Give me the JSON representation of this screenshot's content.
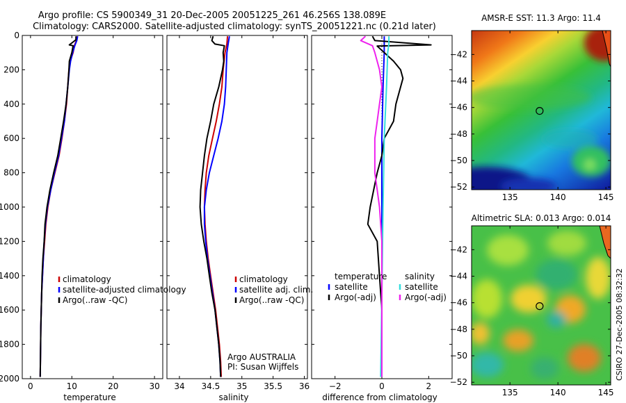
{
  "header": {
    "title_line1": "Argo profile: CS 5900349_31 20-Dec-2005 20051225_261 46.256S 138.089E",
    "title_line2": "Climatology: CARS2000. Satellite-adjusted climatology: synTS_20051221.nc (0.21d later)"
  },
  "footer": {
    "credit": "CSIRO 27-Dec-2005 08:32:32"
  },
  "colors": {
    "red": "#cc0000",
    "blue": "#0000ff",
    "black": "#000000",
    "cyan": "#33dddd",
    "magenta": "#ee22ee"
  },
  "chart_data": [
    {
      "id": "temperature",
      "type": "line",
      "xlabel": "temperature",
      "xlim": [
        -2,
        32
      ],
      "ylim": [
        2000,
        0
      ],
      "xticks": [
        0,
        10,
        20,
        30
      ],
      "yticks": [
        0,
        200,
        400,
        600,
        800,
        1000,
        1200,
        1400,
        1600,
        1800,
        2000
      ],
      "legend": [
        "climatology",
        "satellite-adjusted climatology",
        "Argo(..raw -QC)"
      ],
      "series": [
        {
          "name": "climatology",
          "color": "red",
          "points": [
            [
              11.3,
              5
            ],
            [
              11.1,
              30
            ],
            [
              10.6,
              60
            ],
            [
              10.3,
              100
            ],
            [
              9.6,
              150
            ],
            [
              9.3,
              200
            ],
            [
              9.0,
              300
            ],
            [
              8.7,
              400
            ],
            [
              8.2,
              500
            ],
            [
              7.6,
              600
            ],
            [
              6.9,
              700
            ],
            [
              5.9,
              800
            ],
            [
              4.9,
              900
            ],
            [
              4.2,
              1000
            ],
            [
              3.7,
              1100
            ],
            [
              3.4,
              1200
            ],
            [
              3.1,
              1300
            ],
            [
              2.9,
              1400
            ],
            [
              2.7,
              1500
            ],
            [
              2.6,
              1600
            ],
            [
              2.5,
              1700
            ],
            [
              2.45,
              1800
            ],
            [
              2.4,
              1900
            ],
            [
              2.35,
              1990
            ]
          ]
        },
        {
          "name": "satellite",
          "color": "blue",
          "points": [
            [
              11.4,
              5
            ],
            [
              11.2,
              30
            ],
            [
              10.7,
              60
            ],
            [
              10.2,
              100
            ],
            [
              9.7,
              150
            ],
            [
              9.4,
              200
            ],
            [
              9.0,
              300
            ],
            [
              8.6,
              400
            ],
            [
              8.2,
              500
            ],
            [
              7.5,
              600
            ],
            [
              6.8,
              700
            ],
            [
              5.8,
              800
            ],
            [
              4.9,
              900
            ],
            [
              4.1,
              1000
            ],
            [
              3.6,
              1100
            ],
            [
              3.3,
              1200
            ],
            [
              3.1,
              1300
            ],
            [
              2.9,
              1400
            ],
            [
              2.7,
              1500
            ],
            [
              2.6,
              1600
            ],
            [
              2.5,
              1700
            ],
            [
              2.45,
              1800
            ],
            [
              2.4,
              1900
            ],
            [
              2.35,
              1990
            ]
          ]
        },
        {
          "name": "argo",
          "color": "black",
          "points": [
            [
              11.0,
              5
            ],
            [
              11.0,
              25
            ],
            [
              10.2,
              40
            ],
            [
              9.4,
              55
            ],
            [
              10.3,
              60
            ],
            [
              10.0,
              100
            ],
            [
              9.4,
              150
            ],
            [
              9.3,
              200
            ],
            [
              9.0,
              300
            ],
            [
              8.6,
              400
            ],
            [
              8.0,
              500
            ],
            [
              7.3,
              600
            ],
            [
              6.6,
              700
            ],
            [
              5.6,
              800
            ],
            [
              4.7,
              900
            ],
            [
              4.0,
              1000
            ],
            [
              3.5,
              1100
            ],
            [
              3.3,
              1200
            ],
            [
              3.0,
              1300
            ],
            [
              2.8,
              1400
            ],
            [
              2.7,
              1500
            ],
            [
              2.6,
              1600
            ],
            [
              2.5,
              1700
            ],
            [
              2.45,
              1800
            ],
            [
              2.4,
              1900
            ],
            [
              2.35,
              1990
            ]
          ]
        }
      ]
    },
    {
      "id": "salinity",
      "type": "line",
      "xlabel": "salinity",
      "xlim": [
        33.8,
        36.05
      ],
      "ylim": [
        2000,
        0
      ],
      "xticks": [
        34,
        34.5,
        35,
        35.5,
        36
      ],
      "yticks": [
        0,
        200,
        400,
        600,
        800,
        1000,
        1200,
        1400,
        1600,
        1800,
        2000
      ],
      "legend": [
        "climatology",
        "satellite adj. clim.",
        "Argo(..raw -QC)"
      ],
      "annotation": [
        "Argo AUSTRALIA",
        "PI: Susan Wijffels"
      ],
      "series": [
        {
          "name": "climatology",
          "color": "red",
          "points": [
            [
              34.77,
              5
            ],
            [
              34.76,
              50
            ],
            [
              34.73,
              100
            ],
            [
              34.7,
              200
            ],
            [
              34.68,
              300
            ],
            [
              34.64,
              400
            ],
            [
              34.59,
              500
            ],
            [
              34.53,
              600
            ],
            [
              34.47,
              700
            ],
            [
              34.43,
              800
            ],
            [
              34.41,
              900
            ],
            [
              34.4,
              1000
            ],
            [
              34.41,
              1100
            ],
            [
              34.43,
              1200
            ],
            [
              34.46,
              1300
            ],
            [
              34.5,
              1400
            ],
            [
              34.54,
              1500
            ],
            [
              34.58,
              1600
            ],
            [
              34.61,
              1700
            ],
            [
              34.64,
              1800
            ],
            [
              34.66,
              1900
            ],
            [
              34.67,
              1990
            ]
          ]
        },
        {
          "name": "satellite",
          "color": "blue",
          "points": [
            [
              34.8,
              5
            ],
            [
              34.78,
              50
            ],
            [
              34.76,
              100
            ],
            [
              34.75,
              200
            ],
            [
              34.74,
              300
            ],
            [
              34.72,
              400
            ],
            [
              34.68,
              500
            ],
            [
              34.62,
              600
            ],
            [
              34.55,
              700
            ],
            [
              34.48,
              800
            ],
            [
              34.43,
              900
            ],
            [
              34.4,
              1000
            ],
            [
              34.4,
              1100
            ],
            [
              34.42,
              1200
            ],
            [
              34.45,
              1300
            ],
            [
              34.49,
              1400
            ],
            [
              34.53,
              1500
            ],
            [
              34.57,
              1600
            ],
            [
              34.6,
              1700
            ],
            [
              34.63,
              1800
            ],
            [
              34.65,
              1900
            ],
            [
              34.66,
              1990
            ]
          ]
        },
        {
          "name": "argo",
          "color": "black",
          "points": [
            [
              34.54,
              5
            ],
            [
              34.52,
              30
            ],
            [
              34.57,
              50
            ],
            [
              34.72,
              60
            ],
            [
              34.7,
              100
            ],
            [
              34.71,
              150
            ],
            [
              34.69,
              200
            ],
            [
              34.63,
              300
            ],
            [
              34.55,
              400
            ],
            [
              34.5,
              500
            ],
            [
              34.44,
              600
            ],
            [
              34.4,
              700
            ],
            [
              34.37,
              800
            ],
            [
              34.34,
              900
            ],
            [
              34.33,
              1000
            ],
            [
              34.35,
              1100
            ],
            [
              34.39,
              1200
            ],
            [
              34.44,
              1300
            ],
            [
              34.48,
              1400
            ],
            [
              34.52,
              1500
            ],
            [
              34.57,
              1600
            ],
            [
              34.6,
              1700
            ],
            [
              34.63,
              1800
            ],
            [
              34.65,
              1900
            ],
            [
              34.66,
              1990
            ]
          ]
        }
      ]
    },
    {
      "id": "difference",
      "type": "line",
      "xlabel": "difference from climatology",
      "xlim": [
        -3,
        3
      ],
      "ylim": [
        2000,
        0
      ],
      "xticks": [
        -2,
        0,
        2
      ],
      "yticks": [
        0,
        200,
        400,
        600,
        800,
        1000,
        1200,
        1400,
        1600,
        1800,
        2000
      ],
      "legend_temperature": [
        "temperature",
        "satellite",
        "Argo(-adj)"
      ],
      "legend_salinity": [
        "salinity",
        "satellite",
        "Argo(-adj)"
      ],
      "series": [
        {
          "name": "temperature satellite",
          "color": "blue",
          "points": [
            [
              0.1,
              5
            ],
            [
              0.1,
              100
            ],
            [
              0.05,
              300
            ],
            [
              0.0,
              600
            ],
            [
              0.0,
              1000
            ],
            [
              0.0,
              1500
            ],
            [
              0.0,
              1990
            ]
          ]
        },
        {
          "name": "temperature Argo(-adj)",
          "color": "black",
          "points": [
            [
              -0.4,
              5
            ],
            [
              -0.3,
              30
            ],
            [
              2.1,
              55
            ],
            [
              -0.2,
              62
            ],
            [
              0.1,
              100
            ],
            [
              0.5,
              150
            ],
            [
              0.8,
              200
            ],
            [
              0.9,
              250
            ],
            [
              0.6,
              400
            ],
            [
              0.5,
              500
            ],
            [
              0.1,
              600
            ],
            [
              0.0,
              700
            ],
            [
              -0.2,
              800
            ],
            [
              -0.5,
              1000
            ],
            [
              -0.6,
              1100
            ],
            [
              -0.2,
              1200
            ],
            [
              -0.1,
              1400
            ],
            [
              0.0,
              1600
            ],
            [
              0.0,
              1990
            ]
          ]
        },
        {
          "name": "salinity satellite",
          "color": "cyan",
          "points": [
            [
              0.3,
              5
            ],
            [
              0.3,
              50
            ],
            [
              0.25,
              100
            ],
            [
              0.2,
              300
            ],
            [
              0.1,
              600
            ],
            [
              0.05,
              1000
            ],
            [
              0.0,
              1500
            ],
            [
              -0.05,
              1990
            ]
          ]
        },
        {
          "name": "salinity Argo(-adj)",
          "color": "magenta",
          "points": [
            [
              -0.7,
              5
            ],
            [
              -0.9,
              30
            ],
            [
              -0.4,
              60
            ],
            [
              -0.3,
              100
            ],
            [
              -0.1,
              200
            ],
            [
              0.0,
              300
            ],
            [
              -0.1,
              400
            ],
            [
              -0.2,
              500
            ],
            [
              -0.3,
              600
            ],
            [
              -0.3,
              700
            ],
            [
              -0.3,
              800
            ],
            [
              -0.2,
              900
            ],
            [
              -0.1,
              1000
            ],
            [
              0.0,
              1200
            ],
            [
              0.0,
              1600
            ],
            [
              0.0,
              1990
            ]
          ]
        }
      ]
    },
    {
      "id": "sst_map",
      "type": "heatmap",
      "title": "AMSR-E SST: 11.3 Argo: 11.4",
      "xlim": [
        131,
        145.5
      ],
      "ylim": [
        -52.2,
        -40.2
      ],
      "xticks": [
        135,
        140,
        145
      ],
      "yticks": [
        -42,
        -44,
        -46,
        -48,
        -50,
        -52
      ],
      "marker": [
        138.089,
        -46.256
      ]
    },
    {
      "id": "sla_map",
      "type": "heatmap",
      "title": "Altimetric SLA: 0.013 Argo: 0.014",
      "xlim": [
        131,
        145.5
      ],
      "ylim": [
        -52.2,
        -40.2
      ],
      "xticks": [
        135,
        140,
        145
      ],
      "yticks": [
        -42,
        -44,
        -46,
        -48,
        -50,
        -52
      ],
      "marker": [
        138.089,
        -46.256
      ]
    }
  ]
}
